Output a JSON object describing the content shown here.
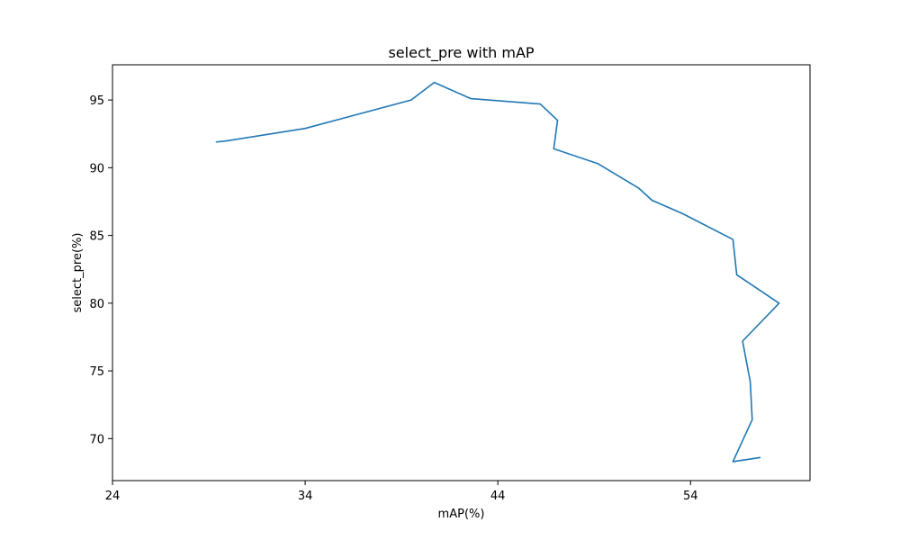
{
  "chart_data": {
    "type": "line",
    "title": "select_pre with mAP",
    "xlabel": "mAP(%)",
    "ylabel": "select_pre(%)",
    "xlim": [
      24,
      60.2
    ],
    "ylim": [
      66.9,
      97.6
    ],
    "xticks": [
      24,
      34,
      44,
      54
    ],
    "xtick_labels": [
      "24",
      "34",
      "44",
      "54"
    ],
    "yticks": [
      70,
      75,
      80,
      85,
      90,
      95
    ],
    "ytick_labels": [
      "70",
      "75",
      "80",
      "85",
      "90",
      "95"
    ],
    "grid": false,
    "line_color": "#1f77b4",
    "series": [
      {
        "x": [
          29.4,
          30.0,
          34.0,
          39.5,
          40.7,
          42.6,
          46.2,
          47.1,
          46.9,
          49.2,
          51.3,
          52.0,
          53.6,
          56.2,
          56.4,
          58.6,
          56.7,
          57.1,
          57.2,
          56.2,
          57.6
        ],
        "y": [
          91.9,
          92.0,
          92.9,
          95.0,
          96.3,
          95.1,
          94.7,
          93.5,
          91.4,
          90.3,
          88.5,
          87.6,
          86.6,
          84.7,
          82.1,
          80.0,
          77.2,
          74.2,
          71.4,
          68.3,
          68.6
        ]
      }
    ]
  }
}
